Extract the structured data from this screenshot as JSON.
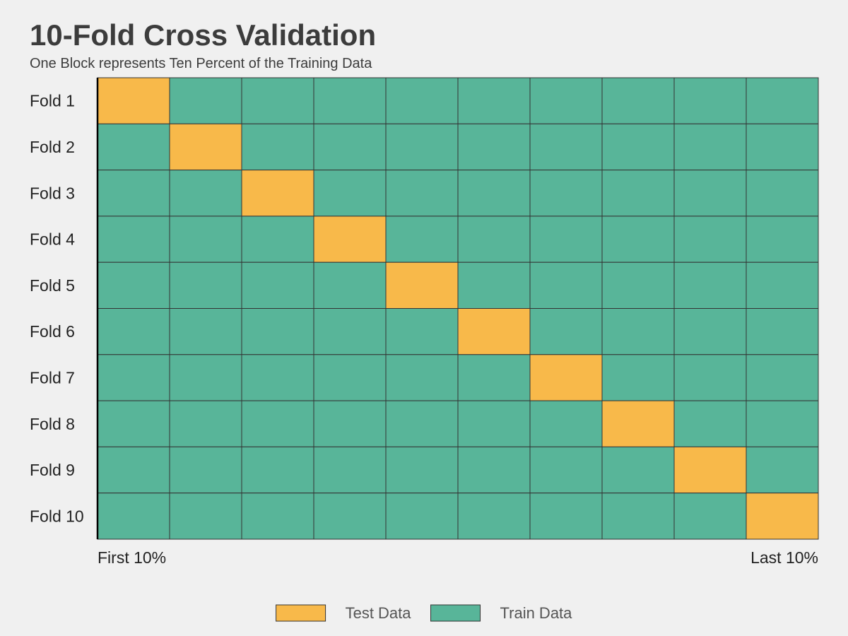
{
  "chart_data": {
    "type": "heatmap",
    "title": "10-Fold Cross Validation",
    "subtitle": "One Block represents Ten Percent of the Training Data",
    "rows": [
      "Fold 1",
      "Fold 2",
      "Fold 3",
      "Fold 4",
      "Fold 5",
      "Fold 6",
      "Fold 7",
      "Fold 8",
      "Fold 9",
      "Fold 10"
    ],
    "n_blocks": 10,
    "test_block_index": [
      0,
      1,
      2,
      3,
      4,
      5,
      6,
      7,
      8,
      9
    ],
    "x_tick_labels": {
      "first": "First 10%",
      "last": "Last 10%"
    },
    "legend": [
      {
        "label": "Test Data",
        "color": "#f8b94a"
      },
      {
        "label": "Train Data",
        "color": "#58b599"
      }
    ],
    "colors": {
      "test": "#f8b94a",
      "train": "#58b599",
      "grid": "#333333",
      "background": "#f0f0f0"
    },
    "grid": false,
    "legend_position": "bottom"
  }
}
